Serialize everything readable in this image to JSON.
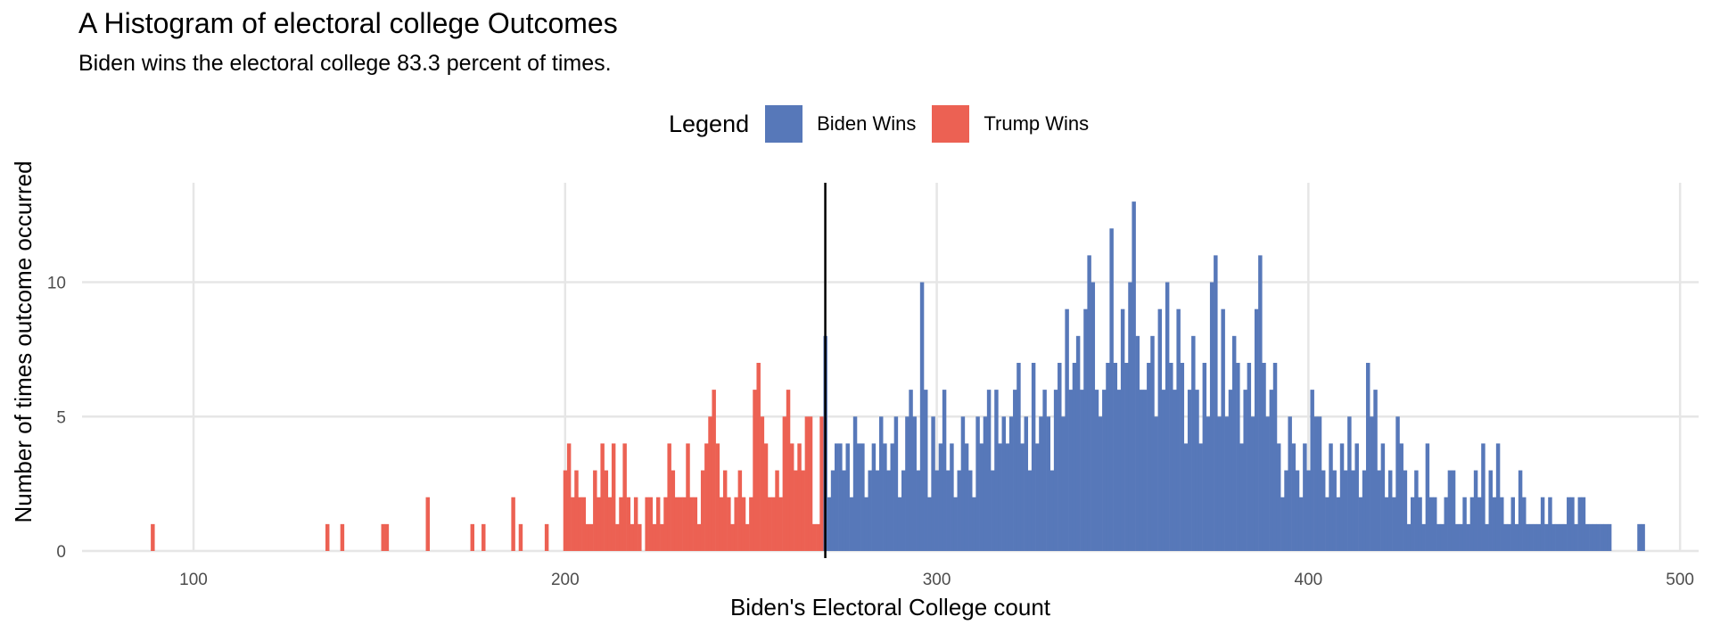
{
  "header": {
    "title": "A Histogram of electoral college Outcomes",
    "subtitle": "Biden wins the electoral college 83.3 percent of times."
  },
  "legend": {
    "title": "Legend",
    "items": [
      {
        "label": "Biden Wins",
        "color": "#5778b9"
      },
      {
        "label": "Trump Wins",
        "color": "#ec6153"
      }
    ]
  },
  "chart_data": {
    "type": "bar",
    "title": "A Histogram of electoral college Outcomes",
    "subtitle": "Biden wins the electoral college 83.3 percent of times.",
    "xlabel": "Biden's Electoral College count",
    "ylabel": "Number of times outcome occurred",
    "xlim": [
      70,
      505
    ],
    "ylim": [
      0,
      13.7
    ],
    "xticks": [
      100,
      200,
      300,
      400,
      500
    ],
    "yticks": [
      0,
      5,
      10
    ],
    "grid": true,
    "legend_position": "top",
    "threshold_line": 270,
    "threshold_color": "#000000",
    "series": [
      {
        "name": "Trump Wins",
        "color": "#ec6153",
        "x": [
          89,
          136,
          140,
          151,
          152,
          163,
          175,
          178,
          186,
          188,
          195,
          200,
          201,
          202,
          203,
          204,
          205,
          206,
          207,
          208,
          209,
          210,
          211,
          212,
          213,
          214,
          215,
          216,
          217,
          218,
          219,
          220,
          222,
          223,
          224,
          225,
          226,
          227,
          228,
          229,
          230,
          231,
          232,
          233,
          234,
          235,
          236,
          237,
          238,
          239,
          240,
          241,
          242,
          243,
          244,
          245,
          246,
          247,
          248,
          249,
          250,
          251,
          252,
          253,
          254,
          255,
          256,
          257,
          258,
          259,
          260,
          261,
          262,
          263,
          264,
          265,
          266,
          267,
          268,
          269
        ],
        "values": [
          1,
          1,
          1,
          1,
          1,
          2,
          1,
          1,
          2,
          1,
          1,
          3,
          4,
          2,
          3,
          2,
          2,
          1,
          1,
          3,
          2,
          4,
          3,
          2,
          4,
          1,
          2,
          4,
          2,
          1,
          2,
          1,
          2,
          2,
          1,
          2,
          1,
          2,
          4,
          3,
          2,
          2,
          2,
          4,
          2,
          2,
          1,
          3,
          4,
          5,
          6,
          4,
          2,
          3,
          2,
          1,
          2,
          3,
          2,
          1,
          2,
          6,
          7,
          5,
          4,
          2,
          2,
          3,
          2,
          5,
          6,
          4,
          3,
          4,
          3,
          5,
          5,
          1,
          1,
          5
        ]
      },
      {
        "name": "Biden Wins",
        "color": "#5778b9",
        "x": [
          270,
          271,
          272,
          273,
          274,
          275,
          276,
          277,
          278,
          279,
          280,
          281,
          282,
          283,
          284,
          285,
          286,
          287,
          288,
          289,
          290,
          291,
          292,
          293,
          294,
          295,
          296,
          297,
          298,
          299,
          300,
          301,
          302,
          303,
          304,
          305,
          306,
          307,
          308,
          309,
          310,
          311,
          312,
          313,
          314,
          315,
          316,
          317,
          318,
          319,
          320,
          321,
          322,
          323,
          324,
          325,
          326,
          327,
          328,
          329,
          330,
          331,
          332,
          333,
          334,
          335,
          336,
          337,
          338,
          339,
          340,
          341,
          342,
          343,
          344,
          345,
          346,
          347,
          348,
          349,
          350,
          351,
          352,
          353,
          354,
          355,
          356,
          357,
          358,
          359,
          360,
          361,
          362,
          363,
          364,
          365,
          366,
          367,
          368,
          369,
          370,
          371,
          372,
          373,
          374,
          375,
          376,
          377,
          378,
          379,
          380,
          381,
          382,
          383,
          384,
          385,
          386,
          387,
          388,
          389,
          390,
          391,
          392,
          393,
          394,
          395,
          396,
          397,
          398,
          399,
          400,
          401,
          402,
          403,
          404,
          405,
          406,
          407,
          408,
          409,
          410,
          411,
          412,
          413,
          414,
          415,
          416,
          417,
          418,
          419,
          420,
          421,
          422,
          423,
          424,
          425,
          426,
          427,
          428,
          429,
          430,
          431,
          432,
          433,
          434,
          435,
          436,
          437,
          438,
          439,
          440,
          441,
          442,
          443,
          444,
          445,
          446,
          447,
          448,
          449,
          450,
          451,
          452,
          453,
          454,
          455,
          456,
          457,
          458,
          459,
          460,
          461,
          462,
          463,
          464,
          465,
          466,
          467,
          468,
          469,
          470,
          471,
          472,
          473,
          474,
          475,
          476,
          477,
          478,
          479,
          480,
          481,
          482,
          483,
          484,
          485,
          486,
          487,
          488,
          489,
          490
        ],
        "values": [
          8,
          2,
          3,
          4,
          4,
          3,
          4,
          2,
          5,
          4,
          4,
          2,
          3,
          4,
          3,
          5,
          4,
          3,
          4,
          5,
          2,
          3,
          5,
          6,
          5,
          3,
          10,
          6,
          2,
          5,
          3,
          4,
          6,
          3,
          4,
          2,
          3,
          5,
          4,
          3,
          2,
          5,
          4,
          5,
          6,
          3,
          6,
          4,
          5,
          4,
          5,
          6,
          7,
          4,
          5,
          3,
          7,
          4,
          5,
          6,
          5,
          3,
          6,
          7,
          5,
          9,
          6,
          7,
          8,
          6,
          9,
          11,
          10,
          6,
          5,
          6,
          7,
          12,
          7,
          6,
          9,
          7,
          10,
          13,
          8,
          6,
          6,
          7,
          8,
          5,
          9,
          6,
          10,
          7,
          6,
          9,
          7,
          4,
          6,
          8,
          6,
          4,
          7,
          5,
          10,
          11,
          5,
          9,
          5,
          6,
          8,
          7,
          4,
          6,
          7,
          5,
          9,
          11,
          7,
          5,
          6,
          7,
          4,
          2,
          3,
          5,
          4,
          3,
          2,
          4,
          3,
          6,
          5,
          5,
          3,
          2,
          4,
          3,
          2,
          4,
          3,
          5,
          3,
          4,
          2,
          3,
          7,
          5,
          6,
          3,
          4,
          2,
          3,
          2,
          5,
          4,
          3,
          1,
          2,
          3,
          2,
          1,
          4,
          2,
          2,
          1,
          1,
          2,
          3,
          3,
          1,
          1,
          2,
          1,
          2,
          3,
          2,
          4,
          1,
          3,
          2,
          4,
          2,
          1,
          1,
          2,
          1,
          3,
          2,
          1,
          1,
          1,
          1,
          2,
          1,
          2,
          1,
          1,
          1,
          1,
          2,
          2,
          1,
          2,
          2,
          1,
          1,
          1,
          1,
          1,
          1,
          1,
          0,
          0,
          0,
          0,
          0,
          0,
          0,
          1,
          1
        ]
      }
    ]
  }
}
